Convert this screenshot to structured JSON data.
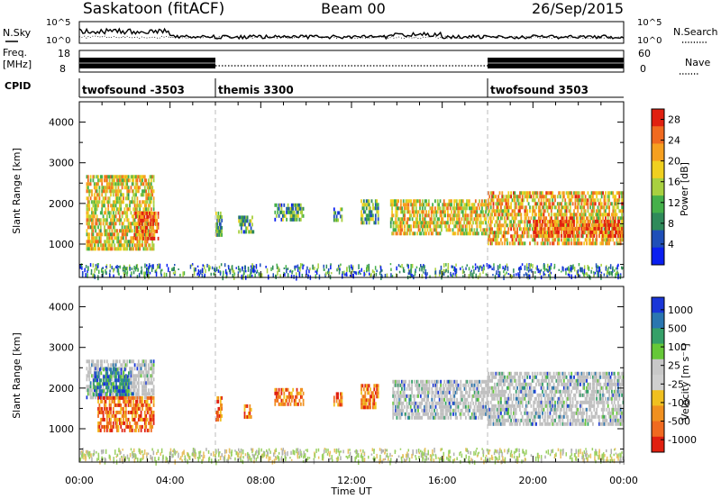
{
  "header": {
    "station": "Saskatoon (fitACF)",
    "beam": "Beam 00",
    "date": "26/Sep/2015"
  },
  "noise_panel": {
    "left_label": "N.Sky",
    "right_label": "N.Search",
    "ticks_left": [
      "10^5",
      "10^0"
    ],
    "ticks_right": [
      "10^5",
      "10^0"
    ]
  },
  "freq_panel": {
    "left_label_1": "Freq.",
    "left_label_2": "[MHz]",
    "right_label": "Nave",
    "ticks_left": [
      "18",
      "8"
    ],
    "ticks_right": [
      "60",
      "0"
    ]
  },
  "cpid": {
    "label": "CPID",
    "segments": [
      {
        "name": "twofsound -3503",
        "start": 0,
        "end": 6
      },
      {
        "name": "themis 3300",
        "start": 6,
        "end": 18
      },
      {
        "name": "twofsound 3503",
        "start": 18,
        "end": 24
      }
    ]
  },
  "colors": {
    "power_scale": [
      "#0a1ff0",
      "#1f4fb8",
      "#2f8a5a",
      "#45b04a",
      "#a8d040",
      "#f0d020",
      "#f6a020",
      "#f06a20",
      "#e02010"
    ],
    "velocity_scale": [
      "#1a36d8",
      "#2a76b0",
      "#35a068",
      "#66c838",
      "#c8c8c8",
      "#cfcfcf",
      "#f0c020",
      "#f09020",
      "#f06a20",
      "#e02010"
    ],
    "ground_scatter": "#c0c0c0"
  },
  "chart_data": [
    {
      "type": "heatmap",
      "title": "Power",
      "xlabel": "",
      "ylabel": "Slant Range [km]",
      "xlim": [
        0,
        24
      ],
      "ylim": [
        180,
        4500
      ],
      "xticks": [
        "00:00",
        "04:00",
        "08:00",
        "12:00",
        "16:00",
        "20:00",
        "00:00"
      ],
      "yticks": [
        1000,
        2000,
        3000,
        4000
      ],
      "colorbar": {
        "label": "Power [dB]",
        "ticks": [
          "4",
          "8",
          "12",
          "16",
          "20",
          "24",
          "28"
        ],
        "range": [
          0,
          30
        ]
      },
      "echo_regions": [
        {
          "t": [
            0.3,
            3.3
          ],
          "r": [
            900,
            2700
          ],
          "level": 0.6
        },
        {
          "t": [
            2.4,
            3.5
          ],
          "r": [
            1100,
            1800
          ],
          "level": 0.85
        },
        {
          "t": [
            6.0,
            6.3
          ],
          "r": [
            1200,
            1800
          ],
          "level": 0.4
        },
        {
          "t": [
            7.0,
            7.7
          ],
          "r": [
            1300,
            1700
          ],
          "level": 0.35
        },
        {
          "t": [
            8.6,
            9.9
          ],
          "r": [
            1600,
            2000
          ],
          "level": 0.35
        },
        {
          "t": [
            11.2,
            11.6
          ],
          "r": [
            1600,
            1900
          ],
          "level": 0.35
        },
        {
          "t": [
            12.4,
            13.2
          ],
          "r": [
            1500,
            2100
          ],
          "level": 0.4
        },
        {
          "t": [
            13.7,
            18.0
          ],
          "r": [
            1300,
            2100
          ],
          "level": 0.6
        },
        {
          "t": [
            18.0,
            24.0
          ],
          "r": [
            1000,
            2300
          ],
          "level": 0.65
        },
        {
          "t": [
            20.0,
            24.0
          ],
          "r": [
            1200,
            1600
          ],
          "level": 0.85
        }
      ]
    },
    {
      "type": "heatmap",
      "title": "Velocity",
      "xlabel": "Time UT",
      "ylabel": "Slant Range [km]",
      "xlim": [
        0,
        24
      ],
      "ylim": [
        180,
        4500
      ],
      "xticks": [
        "00:00",
        "04:00",
        "08:00",
        "12:00",
        "16:00",
        "20:00",
        "00:00"
      ],
      "yticks": [
        1000,
        2000,
        3000,
        4000
      ],
      "colorbar": {
        "label": "Velocity [m s⁻¹]",
        "ticks": [
          "1000",
          "500",
          "100",
          "25",
          "-25",
          "-100",
          "-500",
          "-1000"
        ]
      },
      "echo_regions": [
        {
          "t": [
            0.3,
            3.3
          ],
          "r": [
            1800,
            2700
          ],
          "class": "ground"
        },
        {
          "t": [
            0.6,
            2.2
          ],
          "r": [
            1800,
            2500
          ],
          "class": "positive"
        },
        {
          "t": [
            0.8,
            3.3
          ],
          "r": [
            1000,
            1800
          ],
          "class": "negative"
        },
        {
          "t": [
            6.0,
            6.3
          ],
          "r": [
            1200,
            1800
          ],
          "class": "negative"
        },
        {
          "t": [
            7.2,
            7.6
          ],
          "r": [
            1300,
            1600
          ],
          "class": "negative"
        },
        {
          "t": [
            8.6,
            9.9
          ],
          "r": [
            1600,
            2000
          ],
          "class": "negative"
        },
        {
          "t": [
            11.2,
            11.6
          ],
          "r": [
            1600,
            1900
          ],
          "class": "negative"
        },
        {
          "t": [
            12.4,
            13.2
          ],
          "r": [
            1500,
            2100
          ],
          "class": "negative"
        },
        {
          "t": [
            13.8,
            18.0
          ],
          "r": [
            1300,
            2200
          ],
          "class": "ground"
        },
        {
          "t": [
            18.0,
            24.0
          ],
          "r": [
            1100,
            2400
          ],
          "class": "ground"
        }
      ]
    }
  ]
}
